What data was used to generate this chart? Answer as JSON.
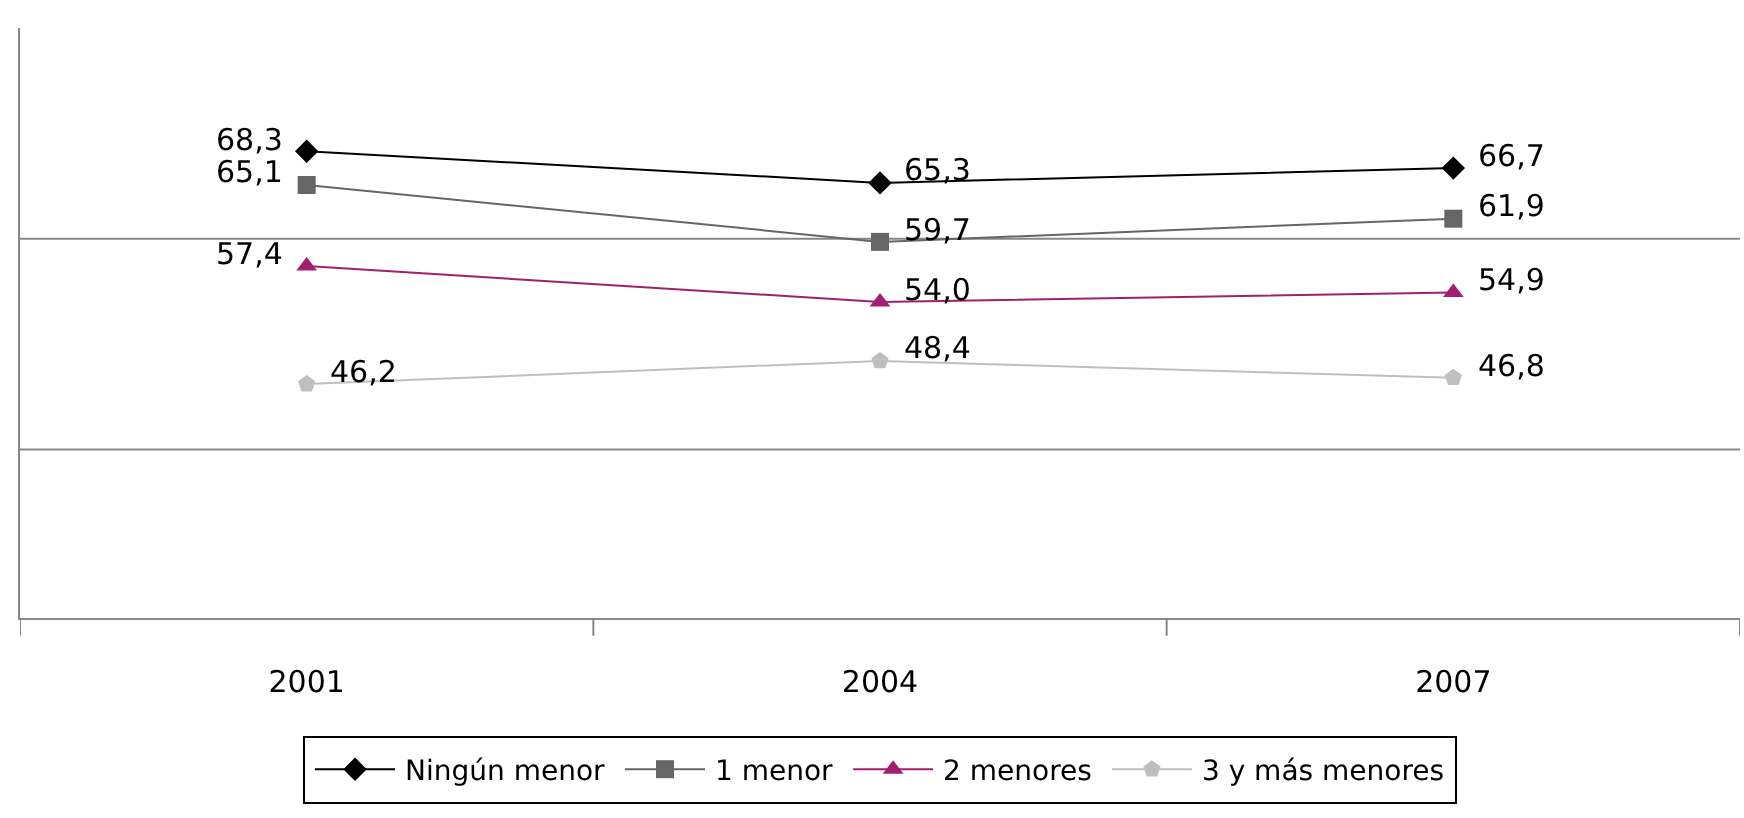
{
  "chart_data": {
    "type": "line",
    "categories": [
      "2001",
      "2004",
      "2007"
    ],
    "series": [
      {
        "name": "Ningún menor",
        "color": "#000000",
        "marker": "diamond",
        "values": [
          68.3,
          65.3,
          66.7
        ],
        "value_labels": [
          "68,3",
          "65,3",
          "66,7"
        ]
      },
      {
        "name": "1 menor",
        "color": "#666666",
        "marker": "square",
        "values": [
          65.1,
          59.7,
          61.9
        ],
        "value_labels": [
          "65,1",
          "59,7",
          "61,9"
        ]
      },
      {
        "name": "2 menores",
        "color": "#a0206e",
        "marker": "triangle",
        "values": [
          57.4,
          54.0,
          54.9
        ],
        "value_labels": [
          "57,4",
          "54,0",
          "54,9"
        ]
      },
      {
        "name": "3 y más menores",
        "color": "#bfbfbf",
        "marker": "circle",
        "values": [
          46.2,
          48.4,
          46.8
        ],
        "value_labels": [
          "46,2",
          "48,4",
          "46,8"
        ]
      }
    ],
    "ylim": [
      24,
      80
    ],
    "ref_lines": [
      {
        "axis": "y",
        "value": 40,
        "color": "#888888"
      },
      {
        "axis": "y",
        "value": 60,
        "color": "#888888"
      }
    ],
    "legend": "bottom",
    "tick_labels": "x"
  }
}
